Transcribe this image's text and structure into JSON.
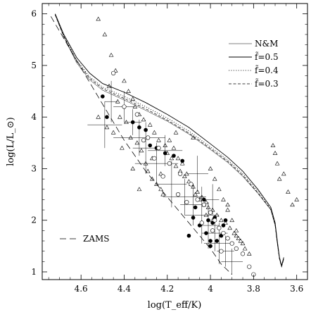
{
  "chart_data": {
    "type": "scatter",
    "title": "",
    "xlabel": "log(T_eff/K)",
    "ylabel": "log(L/L_⊙)",
    "xlim": [
      4.78,
      3.55
    ],
    "ylim": [
      0.85,
      6.2
    ],
    "x_reversed": true,
    "grid": false,
    "x_ticks": [
      4.6,
      4.4,
      4.2,
      4.0,
      3.8,
      3.6
    ],
    "x_tick_labels": [
      "4.6",
      "4.4",
      "4.2",
      "4",
      "3.8",
      "3.6"
    ],
    "y_ticks": [
      1,
      2,
      3,
      4,
      5,
      6
    ],
    "y_tick_labels": [
      "1",
      "2",
      "3",
      "4",
      "5",
      "6"
    ],
    "legend": {
      "placement": "top-right",
      "entries": [
        {
          "label": "N&M",
          "style": "thin-solid"
        },
        {
          "label": "f̃=0.5",
          "style": "solid"
        },
        {
          "label": "f̃=0.4",
          "style": "dotted"
        },
        {
          "label": "f̃=0.3",
          "style": "dashed"
        }
      ]
    },
    "zams_label": "ZAMS",
    "series": [
      {
        "name": "N&M",
        "style": "thin-solid",
        "x": [
          4.72,
          4.68,
          4.62,
          4.56,
          4.5,
          4.4,
          4.3,
          4.2,
          4.1,
          4.0,
          3.92,
          3.85,
          3.78,
          3.72,
          3.7,
          3.69,
          3.68,
          3.67,
          3.66
        ],
        "y": [
          5.98,
          5.55,
          5.05,
          4.72,
          4.52,
          4.33,
          4.13,
          3.92,
          3.67,
          3.37,
          3.12,
          2.85,
          2.52,
          2.2,
          1.9,
          1.55,
          1.25,
          1.1,
          1.25
        ]
      },
      {
        "name": "f̃=0.5",
        "style": "solid",
        "x": [
          4.72,
          4.68,
          4.62,
          4.56,
          4.5,
          4.4,
          4.3,
          4.2,
          4.1,
          4.0,
          3.92,
          3.85,
          3.78,
          3.72,
          3.7,
          3.69,
          3.68,
          3.67,
          3.66
        ],
        "y": [
          6.0,
          5.6,
          5.15,
          4.85,
          4.65,
          4.48,
          4.28,
          4.05,
          3.8,
          3.48,
          3.22,
          2.95,
          2.6,
          2.25,
          1.95,
          1.6,
          1.28,
          1.12,
          1.28
        ]
      },
      {
        "name": "f̃=0.4",
        "style": "dotted",
        "x": [
          4.72,
          4.68,
          4.62,
          4.56,
          4.5,
          4.4,
          4.3,
          4.2,
          4.1,
          4.0,
          3.92,
          3.85,
          3.78,
          3.72,
          3.7,
          3.69,
          3.68,
          3.67,
          3.66
        ],
        "y": [
          5.99,
          5.58,
          5.1,
          4.78,
          4.58,
          4.4,
          4.2,
          3.98,
          3.73,
          3.42,
          3.17,
          2.9,
          2.56,
          2.22,
          1.92,
          1.57,
          1.26,
          1.11,
          1.26
        ]
      },
      {
        "name": "f̃=0.3",
        "style": "dashed",
        "x": [
          4.72,
          4.68,
          4.62,
          4.56,
          4.5,
          4.4,
          4.3,
          4.2,
          4.1,
          4.0,
          3.92,
          3.85,
          3.78,
          3.72,
          3.7,
          3.69,
          3.68,
          3.67,
          3.66
        ],
        "y": [
          5.98,
          5.56,
          5.08,
          4.75,
          4.55,
          4.36,
          4.16,
          3.94,
          3.69,
          3.39,
          3.14,
          2.87,
          2.53,
          2.21,
          1.91,
          1.56,
          1.25,
          1.1,
          1.25
        ]
      },
      {
        "name": "ZAMS",
        "style": "long-dash",
        "x": [
          4.74,
          4.6,
          4.5,
          4.4,
          4.3,
          4.2,
          4.1,
          4.0,
          3.95,
          3.9
        ],
        "y": [
          5.95,
          4.95,
          4.25,
          3.55,
          2.95,
          2.45,
          1.95,
          1.45,
          1.15,
          0.95
        ]
      },
      {
        "name": "",
        "style": "triangle-open",
        "x": [
          4.52,
          4.49,
          4.46,
          4.44,
          4.4,
          4.38,
          4.36,
          4.35,
          4.33,
          4.31,
          4.28,
          4.26,
          4.24,
          4.21,
          4.2,
          4.18,
          4.16,
          4.14,
          4.12,
          4.1,
          4.08,
          4.06,
          4.04,
          4.02,
          4.01,
          3.99,
          3.97,
          3.95,
          3.93,
          3.91,
          3.89,
          3.87,
          3.85,
          3.84,
          3.82,
          4.47,
          4.43,
          4.42,
          4.39,
          4.37,
          4.34,
          4.32,
          4.3,
          4.29,
          4.27,
          4.25,
          4.23,
          4.22,
          4.19,
          4.17,
          4.15,
          4.13,
          4.11,
          4.09,
          4.07,
          4.05,
          4.03,
          4.0,
          3.98,
          3.96,
          3.94,
          3.92,
          3.9,
          3.88,
          3.86,
          3.71,
          3.7,
          3.69,
          3.68,
          3.66,
          3.64,
          3.62,
          3.6,
          4.52,
          4.48,
          4.45,
          4.41,
          4.36,
          4.33,
          4.27,
          4.23,
          4.16,
          4.08,
          4.02,
          3.99,
          3.92,
          3.88
        ],
        "y": [
          5.9,
          5.6,
          5.2,
          4.9,
          4.7,
          4.5,
          4.35,
          4.2,
          4.05,
          3.95,
          3.85,
          3.7,
          3.55,
          3.45,
          3.3,
          3.2,
          3.05,
          2.95,
          2.85,
          2.75,
          2.65,
          2.55,
          2.45,
          2.35,
          2.25,
          2.2,
          2.1,
          2.0,
          1.95,
          1.85,
          1.75,
          1.65,
          1.55,
          1.45,
          1.35,
          4.6,
          4.3,
          4.0,
          3.9,
          3.6,
          3.5,
          3.35,
          3.1,
          2.95,
          2.8,
          2.7,
          2.6,
          2.5,
          3.55,
          3.4,
          3.2,
          3.1,
          2.9,
          2.7,
          2.5,
          2.4,
          2.3,
          3.0,
          2.8,
          2.6,
          2.4,
          2.2,
          2.0,
          1.8,
          1.6,
          3.45,
          3.3,
          3.1,
          2.8,
          2.9,
          2.55,
          2.3,
          2.4,
          4.0,
          3.8,
          3.7,
          3.4,
          3.0,
          2.6,
          3.2,
          2.9,
          3.7,
          3.6,
          2.1,
          2.0,
          2.3,
          1.7
        ]
      },
      {
        "name": "",
        "style": "circle-filled",
        "x": [
          4.5,
          4.48,
          4.36,
          4.33,
          4.3,
          4.28,
          4.25,
          4.21,
          4.17,
          4.13,
          4.08,
          4.05,
          4.02,
          4.01,
          4.0,
          3.99,
          3.98,
          3.96,
          3.95,
          3.94,
          4.1,
          4.07,
          4.03,
          4.0,
          3.97,
          3.93
        ],
        "y": [
          4.4,
          4.0,
          3.9,
          3.8,
          3.75,
          3.45,
          3.4,
          3.3,
          3.25,
          3.15,
          2.05,
          1.9,
          1.75,
          2.0,
          1.6,
          1.95,
          2.05,
          1.85,
          1.7,
          1.9,
          1.7,
          2.25,
          2.4,
          1.5,
          1.6,
          2.0
        ]
      },
      {
        "name": "",
        "style": "circle-open",
        "x": [
          4.45,
          4.4,
          4.34,
          4.29,
          4.24,
          4.19,
          4.14,
          4.09,
          4.06,
          4.03,
          4.0,
          3.98,
          3.96,
          3.94,
          3.92,
          3.9,
          3.88,
          3.85,
          3.82,
          3.8,
          4.31,
          4.26,
          4.22,
          4.15,
          4.11,
          4.04,
          3.99,
          3.95
        ],
        "y": [
          4.85,
          4.2,
          4.05,
          3.6,
          3.4,
          3.1,
          2.9,
          2.7,
          2.4,
          2.3,
          2.15,
          2.0,
          1.85,
          1.75,
          1.65,
          1.55,
          1.45,
          1.35,
          1.1,
          0.95,
          3.55,
          3.2,
          2.85,
          2.5,
          2.35,
          1.95,
          1.8,
          1.4
        ]
      }
    ],
    "error_bars": [
      {
        "x": 4.49,
        "y": 3.85,
        "dx": 0.08,
        "dy": 0.45
      },
      {
        "x": 4.46,
        "y": 4.3,
        "dx": 0.03,
        "dy": 0.4
      },
      {
        "x": 4.4,
        "y": 4.2,
        "dx": 0.05,
        "dy": 0.3
      },
      {
        "x": 4.33,
        "y": 3.6,
        "dx": 0.12,
        "dy": 0.35
      },
      {
        "x": 4.3,
        "y": 3.4,
        "dx": 0.06,
        "dy": 0.5
      },
      {
        "x": 4.25,
        "y": 3.1,
        "dx": 0.1,
        "dy": 0.4
      },
      {
        "x": 4.21,
        "y": 3.35,
        "dx": 0.08,
        "dy": 0.3
      },
      {
        "x": 4.18,
        "y": 2.7,
        "dx": 0.07,
        "dy": 0.45
      },
      {
        "x": 4.12,
        "y": 2.45,
        "dx": 0.1,
        "dy": 0.35
      },
      {
        "x": 4.08,
        "y": 2.3,
        "dx": 0.06,
        "dy": 0.4
      },
      {
        "x": 4.04,
        "y": 2.1,
        "dx": 0.08,
        "dy": 0.55
      },
      {
        "x": 4.01,
        "y": 1.9,
        "dx": 0.05,
        "dy": 0.45
      },
      {
        "x": 3.98,
        "y": 1.75,
        "dx": 0.06,
        "dy": 0.35
      },
      {
        "x": 3.96,
        "y": 1.55,
        "dx": 0.07,
        "dy": 0.4
      },
      {
        "x": 3.93,
        "y": 1.4,
        "dx": 0.04,
        "dy": 0.3
      },
      {
        "x": 3.9,
        "y": 1.2,
        "dx": 0.05,
        "dy": 0.25
      },
      {
        "x": 4.36,
        "y": 3.9,
        "dx": 0.04,
        "dy": 0.25
      },
      {
        "x": 4.06,
        "y": 2.9,
        "dx": 0.05,
        "dy": 0.35
      },
      {
        "x": 3.99,
        "y": 2.4,
        "dx": 0.03,
        "dy": 0.3
      }
    ]
  }
}
